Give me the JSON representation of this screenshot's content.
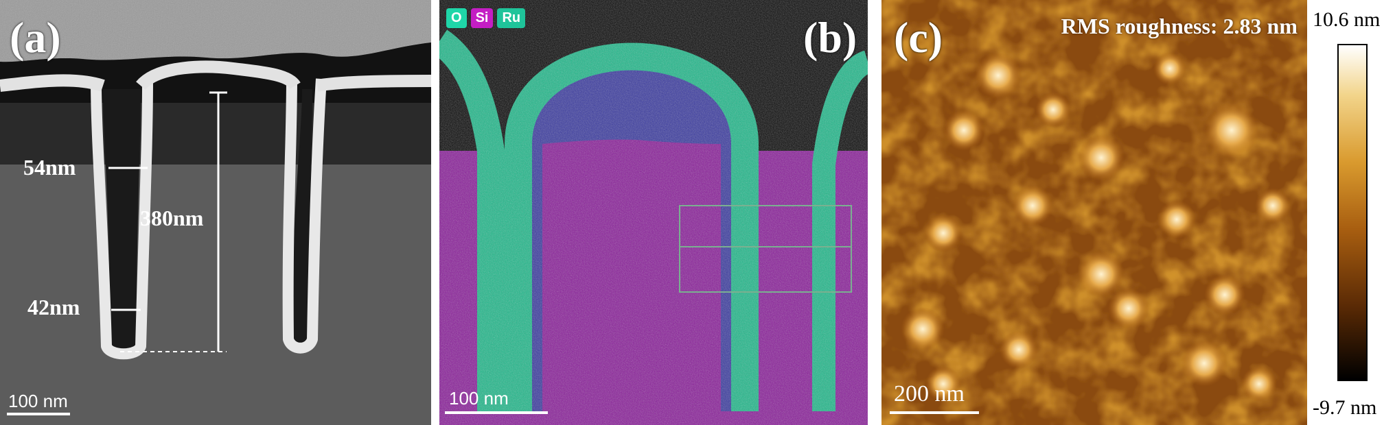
{
  "panels": {
    "a": {
      "label": "(a)",
      "measurements": [
        "54nm",
        "380nm",
        "42nm"
      ],
      "scale_bar": "100 nm"
    },
    "b": {
      "label": "(b)",
      "legend": [
        {
          "name": "O",
          "color": "#1fd6a8"
        },
        {
          "name": "Si",
          "color": "#c41ec4"
        },
        {
          "name": "Ru",
          "color": "#1fc49a"
        }
      ],
      "scale_bar": "100 nm"
    },
    "c": {
      "label": "(c)",
      "rms": "RMS roughness: 2.83 nm",
      "scale_bar": "200 nm"
    }
  },
  "colorbar": {
    "max": "10.6 nm",
    "min": "-9.7 nm"
  }
}
